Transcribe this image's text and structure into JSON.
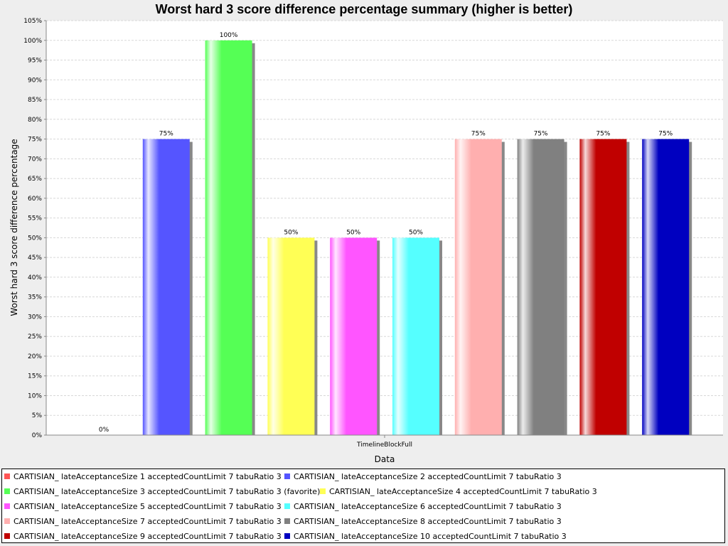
{
  "chart_data": {
    "type": "bar",
    "title": "Worst hard 3 score difference percentage summary (higher is better)",
    "xlabel": "Data",
    "ylabel": "Worst hard 3 score difference percentage",
    "ylim": [
      0,
      105
    ],
    "yticks": [
      "0%",
      "5%",
      "10%",
      "15%",
      "20%",
      "25%",
      "30%",
      "35%",
      "40%",
      "45%",
      "50%",
      "55%",
      "60%",
      "65%",
      "70%",
      "75%",
      "80%",
      "85%",
      "90%",
      "95%",
      "100%",
      "105%"
    ],
    "categories": [
      "TimelineBlockFull"
    ],
    "grid": true,
    "legend_position": "bottom",
    "series": [
      {
        "name": "CARTISIAN_ lateAcceptanceSize 1 acceptedCountLimit 7 tabuRatio 3",
        "color": "#ff5555",
        "values": [
          0
        ],
        "label": "0%"
      },
      {
        "name": "CARTISIAN_ lateAcceptanceSize 2 acceptedCountLimit 7 tabuRatio 3",
        "color": "#5555ff",
        "values": [
          75
        ],
        "label": "75%"
      },
      {
        "name": "CARTISIAN_ lateAcceptanceSize 3 acceptedCountLimit 7 tabuRatio 3 (favorite)",
        "color": "#55ff55",
        "values": [
          100
        ],
        "label": "100%"
      },
      {
        "name": "CARTISIAN_ lateAcceptanceSize 4 acceptedCountLimit 7 tabuRatio 3",
        "color": "#ffff55",
        "values": [
          50
        ],
        "label": "50%"
      },
      {
        "name": "CARTISIAN_ lateAcceptanceSize 5 acceptedCountLimit 7 tabuRatio 3",
        "color": "#ff55ff",
        "values": [
          50
        ],
        "label": "50%"
      },
      {
        "name": "CARTISIAN_ lateAcceptanceSize 6 acceptedCountLimit 7 tabuRatio 3",
        "color": "#55ffff",
        "values": [
          50
        ],
        "label": "50%"
      },
      {
        "name": "CARTISIAN_ lateAcceptanceSize 7 acceptedCountLimit 7 tabuRatio 3",
        "color": "#ffafaf",
        "values": [
          75
        ],
        "label": "75%"
      },
      {
        "name": "CARTISIAN_ lateAcceptanceSize 8 acceptedCountLimit 7 tabuRatio 3",
        "color": "#808080",
        "values": [
          75
        ],
        "label": "75%"
      },
      {
        "name": "CARTISIAN_ lateAcceptanceSize 9 acceptedCountLimit 7 tabuRatio 3",
        "color": "#c00000",
        "values": [
          75
        ],
        "label": "75%"
      },
      {
        "name": "CARTISIAN_ lateAcceptanceSize 10 acceptedCountLimit 7 tabuRatio 3",
        "color": "#0000c0",
        "values": [
          75
        ],
        "label": "75%"
      }
    ]
  }
}
